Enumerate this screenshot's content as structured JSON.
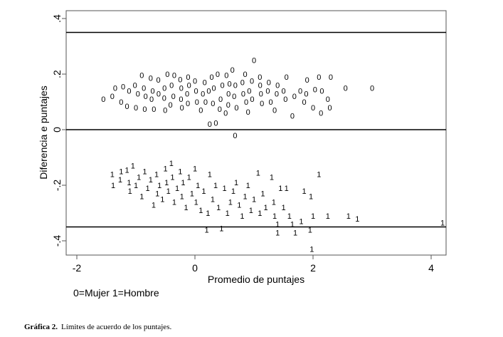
{
  "chart_data": {
    "type": "scatter",
    "xlabel": "Promedio de puntajes",
    "ylabel": "Diferencia e puntajes",
    "xlim": [
      -2.2,
      4.25
    ],
    "ylim": [
      -0.44,
      0.42
    ],
    "xticks": [
      -2,
      0,
      2,
      4
    ],
    "xtick_labels": [
      "-2",
      "0",
      "2",
      "4"
    ],
    "yticks": [
      0.4,
      0.2,
      0,
      -0.2,
      -0.4
    ],
    "ytick_labels": [
      ".4",
      ".2",
      "0",
      "-.2",
      "-.4"
    ],
    "reference_lines": [
      0.35,
      0,
      -0.35
    ],
    "grid": false,
    "legend_text": "0=Mujer  1=Hombre",
    "series": [
      {
        "marker": "0",
        "points": [
          [
            -1.55,
            0.11
          ],
          [
            -1.4,
            0.12
          ],
          [
            -1.35,
            0.15
          ],
          [
            -1.3,
            0.155
          ],
          [
            -1.25,
            0.1
          ],
          [
            -1.2,
            0.14
          ],
          [
            -1.15,
            0.085
          ],
          [
            -1.1,
            0.16
          ],
          [
            -1.05,
            0.13
          ],
          [
            -1.0,
            0.08
          ],
          [
            -0.95,
            0.15
          ],
          [
            -0.92,
            0.12
          ],
          [
            -0.9,
            0.17
          ],
          [
            -0.85,
            0.1
          ],
          [
            -0.8,
            0.14
          ],
          [
            -0.78,
            0.075
          ],
          [
            -0.75,
            0.16
          ],
          [
            -0.7,
            0.13
          ],
          [
            -0.65,
            0.11
          ],
          [
            -0.62,
            0.18
          ],
          [
            -0.6,
            0.15
          ],
          [
            -0.55,
            0.2
          ],
          [
            -0.52,
            0.14
          ],
          [
            -0.5,
            0.09
          ],
          [
            -0.48,
            0.16
          ],
          [
            -0.45,
            0.12
          ],
          [
            -0.42,
            0.07
          ],
          [
            -0.4,
            0.15
          ],
          [
            -0.35,
            0.17
          ],
          [
            -0.32,
            0.11
          ],
          [
            -0.3,
            0.13
          ],
          [
            -0.25,
            0.155
          ],
          [
            -0.22,
            0.08
          ],
          [
            -0.2,
            0.19
          ],
          [
            -0.15,
            0.14
          ],
          [
            -0.12,
            0.12
          ],
          [
            -0.1,
            0.16
          ],
          [
            -0.05,
            0.1
          ],
          [
            0.0,
            0.15
          ],
          [
            0.05,
            0.13
          ],
          [
            0.08,
            0.17
          ],
          [
            0.1,
            0.07
          ],
          [
            0.15,
            0.14
          ],
          [
            0.18,
            0.1
          ],
          [
            0.2,
            0.19
          ],
          [
            0.22,
            0.12
          ],
          [
            0.25,
            0.02
          ],
          [
            0.27,
            0.025
          ],
          [
            0.3,
            0.2
          ],
          [
            0.32,
            0.15
          ],
          [
            0.35,
            0.11
          ],
          [
            0.38,
            0.16
          ],
          [
            0.4,
            0.13
          ],
          [
            0.42,
            0.075
          ],
          [
            0.45,
            0.17
          ],
          [
            0.48,
            0.09
          ],
          [
            0.5,
            0.14
          ],
          [
            0.52,
            0.06
          ],
          [
            0.55,
            0.19
          ],
          [
            0.58,
            0.12
          ],
          [
            0.6,
            0.16
          ],
          [
            0.62,
            0.08
          ],
          [
            0.65,
            0.13
          ],
          [
            0.68,
            -0.02
          ],
          [
            0.7,
            0.1
          ],
          [
            0.72,
            0.17
          ],
          [
            0.75,
            0.14
          ],
          [
            0.8,
            0.11
          ],
          [
            0.85,
            0.2
          ],
          [
            0.88,
            0.15
          ],
          [
            0.9,
            0.09
          ],
          [
            0.95,
            0.13
          ],
          [
            1.0,
            0.25
          ],
          [
            1.02,
            0.16
          ],
          [
            1.05,
            0.12
          ],
          [
            1.1,
            0.19
          ],
          [
            1.15,
            0.14
          ],
          [
            1.2,
            0.1
          ],
          [
            1.25,
            0.17
          ],
          [
            1.3,
            0.13
          ],
          [
            1.35,
            0.07
          ],
          [
            1.4,
            0.16
          ],
          [
            1.45,
            0.11
          ],
          [
            1.5,
            0.14
          ],
          [
            1.55,
            0.19
          ],
          [
            1.6,
            0.12
          ],
          [
            1.65,
            0.05
          ],
          [
            1.7,
            0.14
          ],
          [
            1.8,
            0.13
          ],
          [
            1.85,
            0.1
          ],
          [
            1.9,
            0.18
          ],
          [
            1.95,
            0.145
          ],
          [
            2.0,
            0.08
          ],
          [
            2.05,
            0.06
          ],
          [
            2.1,
            0.19
          ],
          [
            2.15,
            0.14
          ],
          [
            2.2,
            0.08
          ],
          [
            2.3,
            0.19
          ],
          [
            2.25,
            0.085
          ],
          [
            2.55,
            0.15
          ],
          [
            3.0,
            0.15
          ]
        ]
      },
      {
        "marker": "1",
        "points": [
          [
            -1.4,
            -0.16
          ],
          [
            -1.35,
            -0.18
          ],
          [
            -1.3,
            -0.2
          ],
          [
            -1.25,
            -0.15
          ],
          [
            -1.2,
            -0.19
          ],
          [
            -1.15,
            -0.17
          ],
          [
            -1.1,
            -0.22
          ],
          [
            -1.05,
            -0.13
          ],
          [
            -1.0,
            -0.2
          ],
          [
            -0.95,
            -0.17
          ],
          [
            -0.9,
            -0.24
          ],
          [
            -0.85,
            -0.15
          ],
          [
            -0.8,
            -0.21
          ],
          [
            -0.75,
            -0.18
          ],
          [
            -0.72,
            -0.23
          ],
          [
            -0.7,
            -0.27
          ],
          [
            -0.65,
            -0.16
          ],
          [
            -0.6,
            -0.2
          ],
          [
            -0.55,
            -0.25
          ],
          [
            -0.5,
            -0.14
          ],
          [
            -0.48,
            -0.19
          ],
          [
            -0.45,
            -0.22
          ],
          [
            -0.4,
            -0.12
          ],
          [
            -0.38,
            -0.17
          ],
          [
            -0.35,
            -0.26
          ],
          [
            -0.3,
            -0.21
          ],
          [
            -0.25,
            -0.15
          ],
          [
            -0.22,
            -0.24
          ],
          [
            -0.2,
            -0.19
          ],
          [
            -0.15,
            -0.28
          ],
          [
            -0.1,
            -0.17
          ],
          [
            -0.05,
            -0.23
          ],
          [
            0.0,
            -0.14
          ],
          [
            0.02,
            -0.26
          ],
          [
            0.05,
            -0.2
          ],
          [
            0.1,
            -0.29
          ],
          [
            0.15,
            -0.22
          ],
          [
            0.2,
            -0.36
          ],
          [
            0.22,
            -0.3
          ],
          [
            0.25,
            -0.16
          ],
          [
            0.3,
            -0.25
          ],
          [
            0.35,
            -0.2
          ],
          [
            0.4,
            -0.28
          ],
          [
            0.45,
            -0.355
          ],
          [
            0.5,
            -0.21
          ],
          [
            0.55,
            -0.3
          ],
          [
            0.6,
            -0.26
          ],
          [
            0.65,
            -0.22
          ],
          [
            0.7,
            -0.19
          ],
          [
            0.75,
            -0.27
          ],
          [
            0.8,
            -0.31
          ],
          [
            0.85,
            -0.24
          ],
          [
            0.9,
            -0.2
          ],
          [
            0.95,
            -0.29
          ],
          [
            1.0,
            -0.25
          ],
          [
            1.07,
            -0.155
          ],
          [
            1.1,
            -0.3
          ],
          [
            1.15,
            -0.23
          ],
          [
            1.2,
            -0.28
          ],
          [
            1.25,
            -0.26
          ],
          [
            1.3,
            -0.17
          ],
          [
            1.35,
            -0.31
          ],
          [
            1.4,
            -0.34
          ],
          [
            1.4,
            -0.37
          ],
          [
            1.45,
            -0.21
          ],
          [
            1.5,
            -0.28
          ],
          [
            1.55,
            -0.21
          ],
          [
            1.6,
            -0.31
          ],
          [
            1.65,
            -0.34
          ],
          [
            1.7,
            -0.37
          ],
          [
            1.8,
            -0.33
          ],
          [
            1.85,
            -0.22
          ],
          [
            1.88,
            -0.24
          ],
          [
            1.95,
            -0.36
          ],
          [
            1.98,
            -0.43
          ],
          [
            2.0,
            -0.31
          ],
          [
            2.1,
            -0.16
          ],
          [
            2.25,
            -0.31
          ],
          [
            2.6,
            -0.31
          ],
          [
            2.75,
            -0.32
          ],
          [
            4.25,
            -0.335
          ]
        ]
      }
    ]
  },
  "caption": {
    "label": "Gráfica 2.",
    "text": "Límites de acuerdo de los puntajes."
  }
}
